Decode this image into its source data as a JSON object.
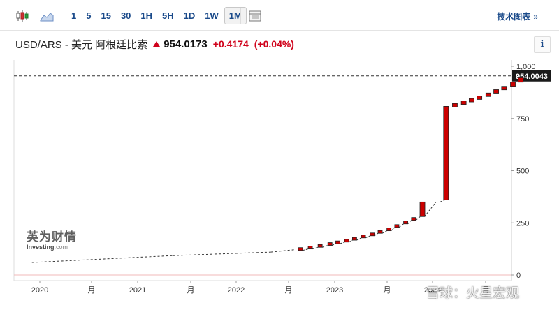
{
  "toolbar": {
    "timeframes": [
      "1",
      "5",
      "15",
      "30",
      "1H",
      "5H",
      "1D",
      "1W",
      "1M"
    ],
    "active_timeframe": "1M",
    "tech_chart_label": "技术图表",
    "tech_chart_chevron": "»",
    "icons": [
      "candlestick-icon",
      "area-chart-icon",
      "table-icon"
    ]
  },
  "quote": {
    "pair": "USD/ARS - 美元 阿根廷比索",
    "price": "954.0173",
    "change": "+0.4174",
    "change_pct": "(+0.04%)",
    "direction": "up",
    "up_color": "#d0021b"
  },
  "info_label": "i",
  "logo": {
    "cn": "英为财情",
    "en": "Investing",
    "en_suffix": ".com"
  },
  "watermark": "雪球：火星宏观",
  "chart_data": {
    "type": "candlestick",
    "y_ticks": [
      "1,000",
      "750",
      "500",
      "250",
      "0"
    ],
    "y_tick_values": [
      1000,
      750,
      500,
      250,
      0
    ],
    "ylim": [
      0,
      1000
    ],
    "x_labels": [
      "2020",
      "月",
      "2021",
      "月",
      "2022",
      "月",
      "2023",
      "月",
      "2024",
      "月"
    ],
    "current_value_label": "954.0043",
    "current_value": 954.0043,
    "up_color": "#cc0000",
    "candles": [
      {
        "o": 820,
        "c": 800
      },
      {
        "o": 800,
        "c": 780
      },
      {
        "o": 780,
        "c": 810
      },
      {
        "o": 810,
        "c": 830
      },
      {
        "o": 830,
        "c": 850
      },
      {
        "o": 850,
        "c": 870
      },
      {
        "o": 870,
        "c": 895
      },
      {
        "o": 895,
        "c": 925
      },
      {
        "o": 925,
        "c": 950
      }
    ],
    "line_segments": [
      {
        "from": [
          2019.92,
          60
        ],
        "to": [
          2021.35,
          93
        ]
      },
      {
        "from": [
          2021.35,
          93
        ],
        "to": [
          2022.35,
          110
        ]
      },
      {
        "from": [
          2022.35,
          110
        ],
        "to": [
          2022.6,
          122
        ]
      }
    ],
    "monthly_closes": [
      [
        2022.65,
        118
      ],
      [
        2022.75,
        125
      ],
      [
        2022.85,
        133
      ],
      [
        2022.95,
        142
      ],
      [
        2023.03,
        150
      ],
      [
        2023.12,
        158
      ],
      [
        2023.2,
        167
      ],
      [
        2023.29,
        178
      ],
      [
        2023.38,
        188
      ],
      [
        2023.46,
        200
      ],
      [
        2023.55,
        212
      ],
      [
        2023.63,
        228
      ],
      [
        2023.72,
        245
      ],
      [
        2023.8,
        262
      ],
      [
        2023.89,
        280
      ],
      [
        2024.05,
        350
      ],
      [
        2024.14,
        360
      ]
    ],
    "big_candles": [
      {
        "x": 2023.89,
        "o": 280,
        "c": 350
      },
      {
        "x": 2024.13,
        "o": 360,
        "c": 808
      }
    ],
    "recent_candles": [
      {
        "x": 2024.22,
        "o": 808,
        "c": 822
      },
      {
        "x": 2024.31,
        "o": 822,
        "c": 834
      },
      {
        "x": 2024.39,
        "o": 834,
        "c": 846
      },
      {
        "x": 2024.47,
        "o": 846,
        "c": 858
      },
      {
        "x": 2024.56,
        "o": 858,
        "c": 872
      },
      {
        "x": 2024.64,
        "o": 872,
        "c": 888
      },
      {
        "x": 2024.72,
        "o": 888,
        "c": 904
      },
      {
        "x": 2024.81,
        "o": 904,
        "c": 924
      },
      {
        "x": 2024.89,
        "o": 924,
        "c": 945
      }
    ]
  }
}
